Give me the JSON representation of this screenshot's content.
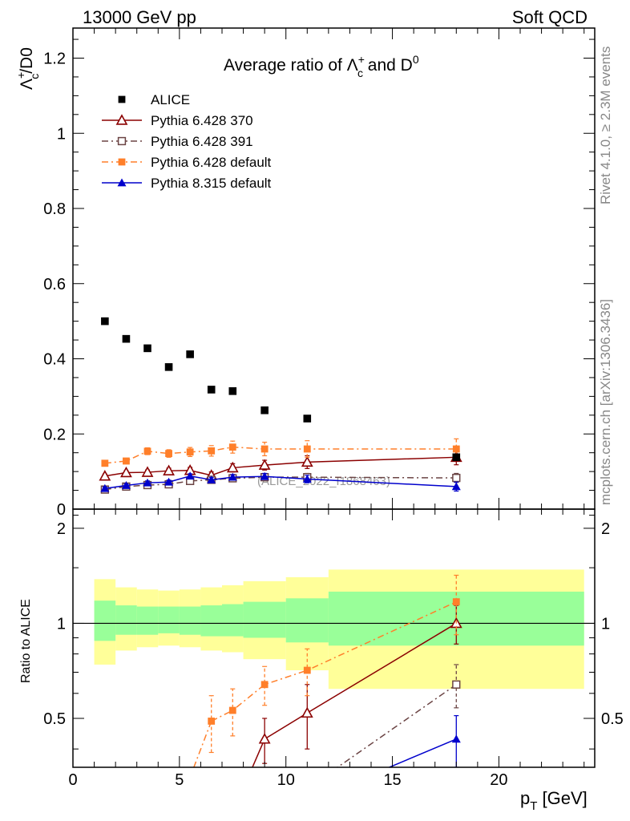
{
  "header": {
    "left": "13000 GeV pp",
    "right": "Soft QCD",
    "side_top": "Rivet 4.1.0, ≥ 2.3M events",
    "side_bottom": "mcplots.cern.ch [arXiv:1306.3436]"
  },
  "chart_data": [
    {
      "type": "scatter",
      "panel": "main",
      "title": "Average ratio of Λc+ and D0",
      "title_parts": {
        "prefix": "Average ratio of ",
        "lambda": "Λ",
        "c_sub": "c",
        "plus": "+",
        "and": " and D",
        "zero": "0"
      },
      "ylabel_parts": {
        "lambda": "Λ",
        "c_sub": "c",
        "plus": "+",
        "rest": "/D0"
      },
      "xlim": [
        0,
        24.5
      ],
      "ylim": [
        0,
        1.28
      ],
      "yticks": [
        0,
        0.2,
        0.4,
        0.6,
        0.8,
        1,
        1.2
      ],
      "ytick_labels": [
        "0",
        "0.2",
        "0.4",
        "0.6",
        "0.8",
        "1",
        "1.2"
      ],
      "watermark": "(ALICE_2022_I1868463)",
      "legend_position": "top-left",
      "series": [
        {
          "name": "ALICE",
          "color": "#000000",
          "marker": "square",
          "line": "none",
          "x": [
            1.5,
            2.5,
            3.5,
            4.5,
            5.5,
            6.5,
            7.5,
            9,
            11,
            18
          ],
          "y": [
            0.5,
            0.453,
            0.428,
            0.378,
            0.412,
            0.318,
            0.314,
            0.263,
            0.241,
            0.138
          ],
          "err": [
            0,
            0,
            0,
            0,
            0,
            0,
            0,
            0,
            0,
            0
          ]
        },
        {
          "name": "Pythia 6.428 370",
          "color": "#8b0000",
          "marker": "triangle-open",
          "line": "solid",
          "x": [
            1.5,
            2.5,
            3.5,
            4.5,
            5.5,
            6.5,
            7.5,
            9,
            11,
            18
          ],
          "y": [
            0.088,
            0.097,
            0.098,
            0.102,
            0.103,
            0.09,
            0.11,
            0.117,
            0.125,
            0.138
          ],
          "err": [
            0.005,
            0.005,
            0.006,
            0.007,
            0.008,
            0.009,
            0.011,
            0.013,
            0.017,
            0.02
          ]
        },
        {
          "name": "Pythia 6.428 391",
          "color": "#6b4444",
          "marker": "square-open",
          "line": "dashdot",
          "x": [
            1.5,
            2.5,
            3.5,
            4.5,
            5.5,
            6.5,
            7.5,
            9,
            11,
            18
          ],
          "y": [
            0.052,
            0.06,
            0.064,
            0.066,
            0.075,
            0.078,
            0.082,
            0.085,
            0.085,
            0.083
          ],
          "err": [
            0.004,
            0.004,
            0.004,
            0.004,
            0.005,
            0.006,
            0.007,
            0.008,
            0.01,
            0.012
          ]
        },
        {
          "name": "Pythia 6.428 default",
          "color": "#ff7f2a",
          "marker": "square",
          "line": "dashdot",
          "x": [
            1.5,
            2.5,
            3.5,
            4.5,
            5.5,
            6.5,
            7.5,
            9,
            11,
            18
          ],
          "y": [
            0.122,
            0.128,
            0.154,
            0.148,
            0.152,
            0.155,
            0.165,
            0.16,
            0.16,
            0.16
          ],
          "err": [
            0.006,
            0.007,
            0.009,
            0.01,
            0.012,
            0.014,
            0.016,
            0.018,
            0.022,
            0.027
          ]
        },
        {
          "name": "Pythia 8.315 default",
          "color": "#0000cc",
          "marker": "triangle",
          "line": "solid",
          "x": [
            1.5,
            2.5,
            3.5,
            4.5,
            5.5,
            6.5,
            7.5,
            9,
            11,
            18
          ],
          "y": [
            0.055,
            0.063,
            0.07,
            0.072,
            0.088,
            0.078,
            0.085,
            0.087,
            0.08,
            0.06
          ],
          "err": [
            0.004,
            0.004,
            0.005,
            0.005,
            0.006,
            0.006,
            0.007,
            0.008,
            0.01,
            0.012
          ]
        }
      ]
    },
    {
      "type": "scatter",
      "panel": "ratio",
      "ylabel": "Ratio to ALICE",
      "xlabel_parts": {
        "p": "p",
        "sub": "T",
        "rest": " [GeV]"
      },
      "xlim": [
        0,
        24.5
      ],
      "ylim": [
        0.35,
        2.3
      ],
      "xticks": [
        0,
        5,
        10,
        15,
        20
      ],
      "xtick_labels": [
        "0",
        "5",
        "10",
        "15",
        "20"
      ],
      "yticks": [
        0.5,
        1,
        2
      ],
      "ytick_labels": [
        "0.5",
        "1",
        "2"
      ],
      "bands": {
        "bins": [
          [
            1,
            2
          ],
          [
            2,
            3
          ],
          [
            3,
            4
          ],
          [
            4,
            5
          ],
          [
            5,
            6
          ],
          [
            6,
            7
          ],
          [
            7,
            8
          ],
          [
            8,
            10
          ],
          [
            10,
            12
          ],
          [
            12,
            24
          ]
        ],
        "inner_low": [
          0.88,
          0.92,
          0.92,
          0.93,
          0.92,
          0.91,
          0.91,
          0.9,
          0.87,
          0.85
        ],
        "inner_high": [
          1.18,
          1.14,
          1.13,
          1.13,
          1.13,
          1.14,
          1.15,
          1.17,
          1.2,
          1.26
        ],
        "outer_low": [
          0.74,
          0.82,
          0.84,
          0.85,
          0.84,
          0.82,
          0.81,
          0.77,
          0.71,
          0.62
        ],
        "outer_high": [
          1.38,
          1.3,
          1.28,
          1.27,
          1.28,
          1.3,
          1.32,
          1.36,
          1.4,
          1.48
        ],
        "inner_color": "#99ff99",
        "outer_color": "#ffff99"
      },
      "series": [
        {
          "name": "Pythia 6.428 370",
          "color": "#8b0000",
          "marker": "triangle-open",
          "line": "solid",
          "x": [
            9,
            11,
            18
          ],
          "y": [
            0.43,
            0.52,
            1.0
          ],
          "err": [
            0.07,
            0.12,
            0.14
          ]
        },
        {
          "name": "Pythia 6.428 391",
          "color": "#6b4444",
          "marker": "square-open",
          "line": "dashdot",
          "x": [
            18
          ],
          "y": [
            0.64
          ],
          "err": [
            0.1
          ]
        },
        {
          "name": "Pythia 6.428 default",
          "color": "#ff7f2a",
          "marker": "square",
          "line": "dashdot",
          "x": [
            6.5,
            7.5,
            9,
            11,
            18
          ],
          "y": [
            0.49,
            0.53,
            0.64,
            0.71,
            1.17
          ],
          "err": [
            0.1,
            0.09,
            0.09,
            0.12,
            0.25
          ]
        },
        {
          "name": "Pythia 8.315 default",
          "color": "#0000cc",
          "marker": "triangle",
          "line": "solid",
          "x": [
            18
          ],
          "y": [
            0.43
          ],
          "err": [
            0.08
          ]
        }
      ],
      "offscale_segments": [
        {
          "series": "Pythia 6.428 370",
          "from": [
            9,
            0.43
          ],
          "to": [
            8.0,
            0.3
          ]
        },
        {
          "series": "Pythia 6.428 391",
          "from": [
            18,
            0.64
          ],
          "to": [
            11,
            0.3
          ]
        },
        {
          "series": "Pythia 6.428 default",
          "from": [
            6.5,
            0.49
          ],
          "to": [
            5.3,
            0.3
          ]
        },
        {
          "series": "Pythia 8.315 default",
          "from": [
            18,
            0.43
          ],
          "to": [
            12.5,
            0.3
          ]
        }
      ]
    }
  ]
}
